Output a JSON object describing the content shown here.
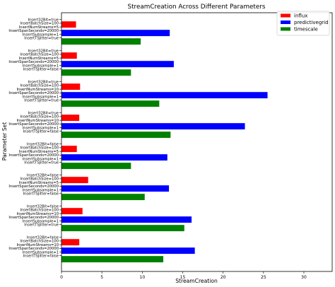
{
  "chart_data": {
    "type": "bar",
    "orientation": "horizontal",
    "title": "StreamCreation Across Different Parameters",
    "xlabel": "StreamCreation",
    "ylabel": "Parameter Set",
    "xlim": [
      0,
      33.5
    ],
    "xticks": [
      0,
      5,
      10,
      15,
      20,
      25,
      30
    ],
    "grid": false,
    "legend_position": "top-right",
    "categories": [
      [
        "Insert32Bit=true",
        "InsertBatchSize=100",
        "InsertNumStreams=5",
        "InsertSpanSeconds=20000",
        "InsertSubsample=1",
        "InsertTSJitter=true"
      ],
      [
        "Insert32Bit=true",
        "InsertBatchSize=100",
        "InsertNumStreams=5",
        "InsertSpanSeconds=20000",
        "InsertSubsample=1",
        "InsertTSJitter=false"
      ],
      [
        "Insert32Bit=true",
        "InsertBatchSize=100",
        "InsertNumStreams=10",
        "InsertSpanSeconds=20000",
        "InsertSubsample=1",
        "InsertTSJitter=true"
      ],
      [
        "Insert32Bit=true",
        "InsertBatchSize=100",
        "InsertNumStreams=10",
        "InsertSpanSeconds=20000",
        "InsertSubsample=1",
        "InsertTSJitter=false"
      ],
      [
        "Insert32Bit=false",
        "InsertBatchSize=100",
        "InsertNumStreams=5",
        "InsertSpanSeconds=20000",
        "InsertSubsample=1",
        "InsertTSJitter=true"
      ],
      [
        "Insert32Bit=false",
        "InsertBatchSize=100",
        "InsertNumStreams=5",
        "InsertSpanSeconds=20000",
        "InsertSubsample=1",
        "InsertTSJitter=false"
      ],
      [
        "Insert32Bit=false",
        "InsertBatchSize=100",
        "InsertNumStreams=10",
        "InsertSpanSeconds=20000",
        "InsertSubsample=1",
        "InsertTSJitter=true"
      ],
      [
        "Insert32Bit=false",
        "InsertBatchSize=100",
        "InsertNumStreams=10",
        "InsertSpanSeconds=20000",
        "InsertSubsample=1",
        "InsertTSJitter=false"
      ]
    ],
    "series": [
      {
        "name": "influx",
        "color": "#ff0000",
        "values": [
          1.8,
          1.9,
          2.3,
          2.2,
          1.9,
          3.3,
          2.6,
          2.2
        ]
      },
      {
        "name": "predictivegrid",
        "color": "#0000ff",
        "values": [
          13.4,
          13.9,
          25.5,
          22.7,
          13.1,
          13.3,
          16.1,
          16.5
        ]
      },
      {
        "name": "timescale",
        "color": "#008000",
        "values": [
          9.8,
          8.6,
          12.1,
          13.5,
          8.6,
          10.3,
          15.2,
          12.6
        ]
      }
    ]
  }
}
